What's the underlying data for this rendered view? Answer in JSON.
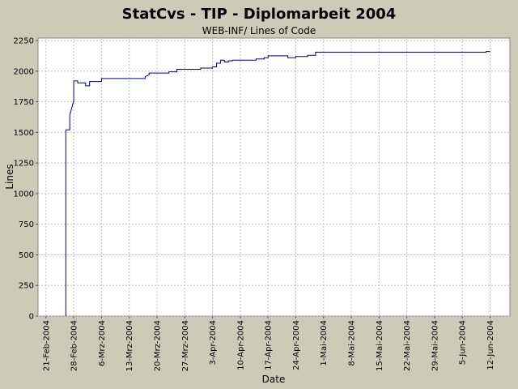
{
  "chart_data": {
    "type": "line",
    "title": "StatCvs - TIP - Diplomarbeit 2004",
    "subtitle": "WEB-INF/ Lines of Code",
    "xlabel": "Date",
    "ylabel": "Lines",
    "grid": true,
    "line_color": "#00008b",
    "plot_background": "#ffffff",
    "page_background": "#cccbb8",
    "x_ticks": [
      "21-Feb-2004",
      "28-Feb-2004",
      "6-Mrz-2004",
      "13-Mrz-2004",
      "20-Mrz-2004",
      "27-Mrz-2004",
      "3-Apr-2004",
      "10-Apr-2004",
      "17-Apr-2004",
      "24-Apr-2004",
      "1-Mai-2004",
      "8-Mai-2004",
      "15-Mai-2004",
      "22-Mai-2004",
      "29-Mai-2004",
      "5-Jun-2004",
      "12-Jun-2004"
    ],
    "y_ticks": [
      0,
      250,
      500,
      750,
      1000,
      1250,
      1500,
      1750,
      2000,
      2250
    ],
    "xlim": [
      "2004-02-19",
      "2004-06-17"
    ],
    "ylim": [
      0,
      2270
    ],
    "series": [
      {
        "points": [
          {
            "x": "2004-02-26",
            "y": 0
          },
          {
            "x": "2004-02-26",
            "y": 1520
          },
          {
            "x": "2004-02-27",
            "y": 1520
          },
          {
            "x": "2004-02-27",
            "y": 1640
          },
          {
            "x": "2004-02-28",
            "y": 1760
          },
          {
            "x": "2004-02-28",
            "y": 1920
          },
          {
            "x": "2004-02-29",
            "y": 1920
          },
          {
            "x": "2004-02-29",
            "y": 1905
          },
          {
            "x": "2004-03-02",
            "y": 1905
          },
          {
            "x": "2004-03-02",
            "y": 1880
          },
          {
            "x": "2004-03-03",
            "y": 1880
          },
          {
            "x": "2004-03-03",
            "y": 1915
          },
          {
            "x": "2004-03-06",
            "y": 1915
          },
          {
            "x": "2004-03-06",
            "y": 1940
          },
          {
            "x": "2004-03-17",
            "y": 1940
          },
          {
            "x": "2004-03-17",
            "y": 1955
          },
          {
            "x": "2004-03-18",
            "y": 1970
          },
          {
            "x": "2004-03-18",
            "y": 1985
          },
          {
            "x": "2004-03-23",
            "y": 1985
          },
          {
            "x": "2004-03-23",
            "y": 1995
          },
          {
            "x": "2004-03-25",
            "y": 1995
          },
          {
            "x": "2004-03-25",
            "y": 2015
          },
          {
            "x": "2004-03-31",
            "y": 2015
          },
          {
            "x": "2004-03-31",
            "y": 2025
          },
          {
            "x": "2004-04-03",
            "y": 2025
          },
          {
            "x": "2004-04-03",
            "y": 2035
          },
          {
            "x": "2004-04-04",
            "y": 2035
          },
          {
            "x": "2004-04-04",
            "y": 2065
          },
          {
            "x": "2004-04-05",
            "y": 2065
          },
          {
            "x": "2004-04-05",
            "y": 2090
          },
          {
            "x": "2004-04-06",
            "y": 2090
          },
          {
            "x": "2004-04-06",
            "y": 2075
          },
          {
            "x": "2004-04-07",
            "y": 2075
          },
          {
            "x": "2004-04-07",
            "y": 2085
          },
          {
            "x": "2004-04-08",
            "y": 2085
          },
          {
            "x": "2004-04-08",
            "y": 2090
          },
          {
            "x": "2004-04-14",
            "y": 2090
          },
          {
            "x": "2004-04-14",
            "y": 2100
          },
          {
            "x": "2004-04-16",
            "y": 2100
          },
          {
            "x": "2004-04-16",
            "y": 2110
          },
          {
            "x": "2004-04-17",
            "y": 2110
          },
          {
            "x": "2004-04-17",
            "y": 2125
          },
          {
            "x": "2004-04-22",
            "y": 2125
          },
          {
            "x": "2004-04-22",
            "y": 2110
          },
          {
            "x": "2004-04-24",
            "y": 2110
          },
          {
            "x": "2004-04-24",
            "y": 2120
          },
          {
            "x": "2004-04-27",
            "y": 2120
          },
          {
            "x": "2004-04-27",
            "y": 2130
          },
          {
            "x": "2004-04-29",
            "y": 2130
          },
          {
            "x": "2004-04-29",
            "y": 2155
          },
          {
            "x": "2004-06-11",
            "y": 2155
          },
          {
            "x": "2004-06-11",
            "y": 2160
          },
          {
            "x": "2004-06-12",
            "y": 2160
          }
        ]
      }
    ]
  }
}
